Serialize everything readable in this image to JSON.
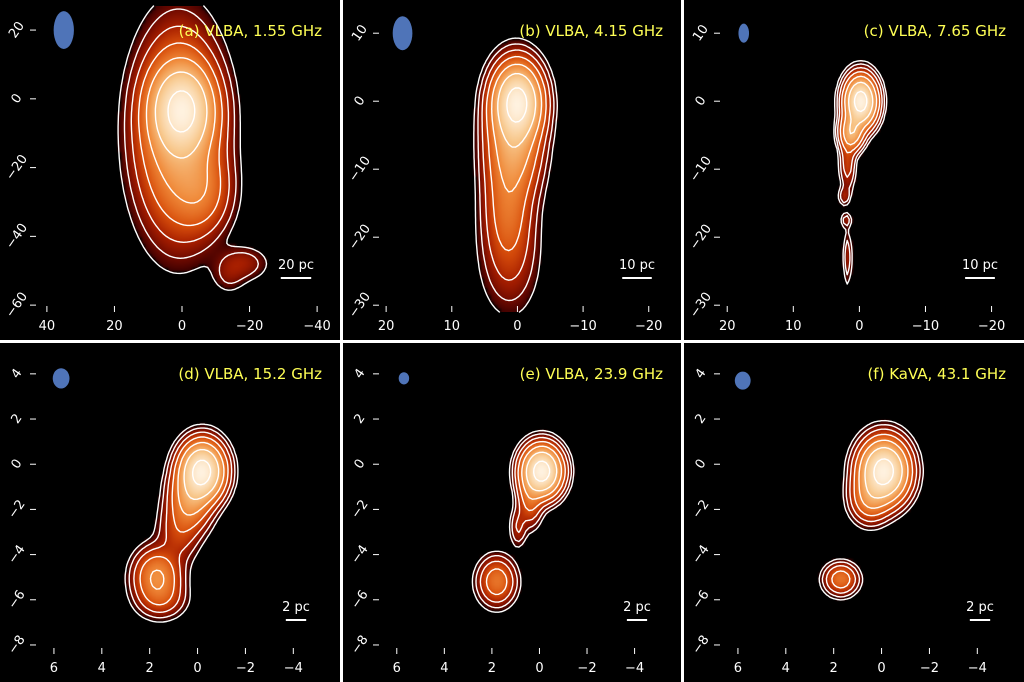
{
  "colors": {
    "background": "#000000",
    "contour": "#ffffff",
    "title": "#ffff55",
    "beam": "#4f74b8",
    "cmap": [
      "#3a0000",
      "#6e0a00",
      "#a61e00",
      "#d84f0c",
      "#f08a3a",
      "#f8c88c",
      "#fff2e0"
    ]
  },
  "chart_data": [
    {
      "type": "heatmap",
      "id": "a",
      "title": "(a) VLBA, 1.55 GHz",
      "xlim": [
        45,
        -45
      ],
      "ylim": [
        -62,
        27
      ],
      "xticks": [
        40,
        20,
        0,
        -20,
        -40
      ],
      "yticks": [
        20,
        0,
        -20,
        -40,
        -60
      ],
      "scale_bar": {
        "label": "20 pc",
        "length": 9
      },
      "beam": {
        "x": 35,
        "y": 20,
        "w": 3,
        "h": 5.5
      },
      "blobs": [
        {
          "x": 0,
          "y": -3,
          "sx": 5,
          "sy": 7,
          "amp": 1.0
        },
        {
          "x": 1,
          "y": -10,
          "sx": 7,
          "sy": 16,
          "amp": 0.42
        },
        {
          "x": -6,
          "y": -27,
          "sx": 5,
          "sy": 7,
          "amp": 0.14
        },
        {
          "x": -18,
          "y": -48,
          "sx": 4.5,
          "sy": 3,
          "amp": 0.055
        },
        {
          "x": -14,
          "y": -52,
          "sx": 3,
          "sy": 3,
          "amp": 0.03
        }
      ]
    },
    {
      "type": "heatmap",
      "id": "b",
      "title": "(b) VLBA, 4.15 GHz",
      "xlim": [
        22,
        -24
      ],
      "ylim": [
        -31,
        14
      ],
      "xticks": [
        20,
        10,
        0,
        -10,
        -20
      ],
      "yticks": [
        10,
        0,
        -10,
        -20,
        -30
      ],
      "scale_bar": {
        "label": "10 pc",
        "length": 4.5
      },
      "beam": {
        "x": 17.5,
        "y": 10,
        "w": 1.5,
        "h": 2.5
      },
      "blobs": [
        {
          "x": 0,
          "y": 0,
          "sx": 2,
          "sy": 3,
          "amp": 1.0
        },
        {
          "x": 0.5,
          "y": -5,
          "sx": 2.3,
          "sy": 5,
          "amp": 0.35
        },
        {
          "x": 1.5,
          "y": -12,
          "sx": 2.2,
          "sy": 6,
          "amp": 0.1
        },
        {
          "x": 1.5,
          "y": -17,
          "sx": 2,
          "sy": 4,
          "amp": 0.07
        },
        {
          "x": 1.2,
          "y": -23,
          "sx": 2.6,
          "sy": 5,
          "amp": 0.06
        }
      ]
    },
    {
      "type": "heatmap",
      "id": "c",
      "title": "(c) VLBA, 7.65 GHz",
      "xlim": [
        22,
        -24
      ],
      "ylim": [
        -31,
        14
      ],
      "xticks": [
        20,
        10,
        0,
        -10,
        -20
      ],
      "yticks": [
        10,
        0,
        -10,
        -20,
        -30
      ],
      "scale_bar": {
        "label": "10 pc",
        "length": 4.5
      },
      "beam": {
        "x": 17.5,
        "y": 10,
        "w": 0.8,
        "h": 1.4
      },
      "blobs": [
        {
          "x": -0.2,
          "y": 0,
          "sx": 1.3,
          "sy": 2,
          "amp": 1.0
        },
        {
          "x": 1.2,
          "y": -4.5,
          "sx": 1,
          "sy": 1.5,
          "amp": 0.35
        },
        {
          "x": 1.8,
          "y": -9,
          "sx": 0.7,
          "sy": 2.5,
          "amp": 0.07
        },
        {
          "x": 2.3,
          "y": -14,
          "sx": 0.5,
          "sy": 0.8,
          "amp": 0.04
        },
        {
          "x": 2,
          "y": -17.5,
          "sx": 0.5,
          "sy": 0.7,
          "amp": 0.035
        },
        {
          "x": 1.8,
          "y": -23,
          "sx": 0.4,
          "sy": 2.5,
          "amp": 0.04
        }
      ]
    },
    {
      "type": "heatmap",
      "id": "d",
      "title": "(d) VLBA, 15.2 GHz",
      "xlim": [
        7,
        -5.7
      ],
      "ylim": [
        -8.4,
        5.1
      ],
      "xticks": [
        6,
        4,
        2,
        0,
        -2,
        -4
      ],
      "yticks": [
        4,
        2,
        0,
        -2,
        -4,
        -6,
        -8
      ],
      "scale_bar": {
        "label": "2 pc",
        "length": 0.85
      },
      "beam": {
        "x": 5.7,
        "y": 3.8,
        "w": 0.35,
        "h": 0.45
      },
      "blobs": [
        {
          "x": -0.2,
          "y": -0.3,
          "sx": 0.5,
          "sy": 0.7,
          "amp": 1.0
        },
        {
          "x": 0.3,
          "y": -1.5,
          "sx": 0.5,
          "sy": 0.8,
          "amp": 0.25
        },
        {
          "x": 0.8,
          "y": -3,
          "sx": 0.5,
          "sy": 0.8,
          "amp": 0.07
        },
        {
          "x": 1.7,
          "y": -5,
          "sx": 0.55,
          "sy": 0.7,
          "amp": 0.22
        },
        {
          "x": 1.5,
          "y": -6,
          "sx": 0.6,
          "sy": 0.5,
          "amp": 0.06
        }
      ]
    },
    {
      "type": "heatmap",
      "id": "e",
      "title": "(e) VLBA, 23.9 GHz",
      "xlim": [
        7,
        -5.7
      ],
      "ylim": [
        -8.4,
        5.1
      ],
      "xticks": [
        6,
        4,
        2,
        0,
        -2,
        -4
      ],
      "yticks": [
        4,
        2,
        0,
        -2,
        -4,
        -6,
        -8
      ],
      "scale_bar": {
        "label": "2 pc",
        "length": 0.85
      },
      "beam": {
        "x": 5.7,
        "y": 3.8,
        "w": 0.22,
        "h": 0.27
      },
      "blobs": [
        {
          "x": -0.1,
          "y": -0.3,
          "sx": 0.45,
          "sy": 0.6,
          "amp": 1.0
        },
        {
          "x": 0.4,
          "y": -1.5,
          "sx": 0.3,
          "sy": 0.7,
          "amp": 0.12
        },
        {
          "x": 0.9,
          "y": -2.8,
          "sx": 0.2,
          "sy": 0.5,
          "amp": 0.05
        },
        {
          "x": 1.8,
          "y": -5.2,
          "sx": 0.45,
          "sy": 0.6,
          "amp": 0.15
        }
      ]
    },
    {
      "type": "heatmap",
      "id": "f",
      "title": "(f) KaVA, 43.1 GHz",
      "xlim": [
        7,
        -5.7
      ],
      "ylim": [
        -8.4,
        5.1
      ],
      "xticks": [
        6,
        4,
        2,
        0,
        -2,
        -4
      ],
      "yticks": [
        4,
        2,
        0,
        -2,
        -4,
        -6,
        -8
      ],
      "scale_bar": {
        "label": "2 pc",
        "length": 0.85
      },
      "beam": {
        "x": 5.8,
        "y": 3.7,
        "w": 0.33,
        "h": 0.4
      },
      "blobs": [
        {
          "x": -0.1,
          "y": -0.3,
          "sx": 0.55,
          "sy": 0.75,
          "amp": 1.0
        },
        {
          "x": 0.5,
          "y": -1.5,
          "sx": 0.45,
          "sy": 0.6,
          "amp": 0.18
        },
        {
          "x": 1.7,
          "y": -5.1,
          "sx": 0.4,
          "sy": 0.4,
          "amp": 0.15
        }
      ]
    }
  ]
}
